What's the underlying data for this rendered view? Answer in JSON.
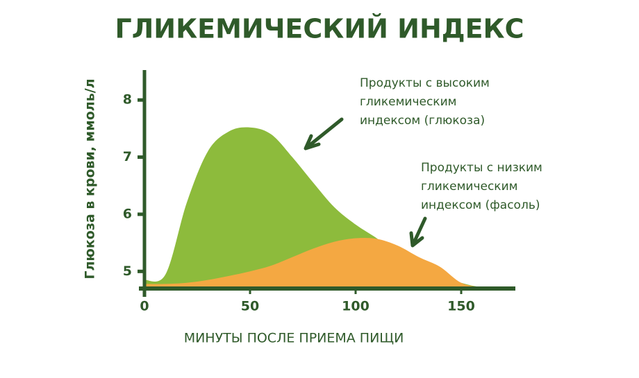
{
  "chart_data": {
    "type": "area",
    "title": "ГЛИКЕМИЧЕСКИЙ ИНДЕКС",
    "x_label": "МИНУТЫ ПОСЛЕ ПРИЕМА ПИЩИ",
    "y_label": "Глюкоза в крови, ммоль/л",
    "x": [
      0,
      10,
      20,
      30,
      40,
      50,
      60,
      70,
      80,
      90,
      100,
      110,
      120,
      130,
      140,
      150,
      160,
      170
    ],
    "series": [
      {
        "color": "#8dbb3c",
        "values": [
          4.85,
          4.95,
          6.2,
          7.1,
          7.45,
          7.52,
          7.4,
          7.0,
          6.55,
          6.12,
          5.82,
          5.58,
          5.3,
          5.1,
          4.95,
          4.8,
          4.72,
          4.7
        ]
      },
      {
        "color": "#f4a842",
        "values": [
          4.78,
          4.78,
          4.8,
          4.85,
          4.92,
          5.0,
          5.1,
          5.25,
          5.4,
          5.52,
          5.58,
          5.57,
          5.45,
          5.25,
          5.08,
          4.8,
          4.72,
          4.7
        ]
      }
    ],
    "xlim": [
      0,
      175
    ],
    "ylim": [
      4.7,
      8.5
    ],
    "xticks": [
      0,
      50,
      100,
      150
    ],
    "yticks": [
      5,
      6,
      7,
      8
    ],
    "annotations": [
      {
        "lines": [
          "Продукты с высоким",
          "гликемическим",
          "индексом (глюкоза)"
        ]
      },
      {
        "lines": [
          "Продукты с низким",
          "гликемическим",
          "индексом (фасоль)"
        ]
      }
    ]
  }
}
